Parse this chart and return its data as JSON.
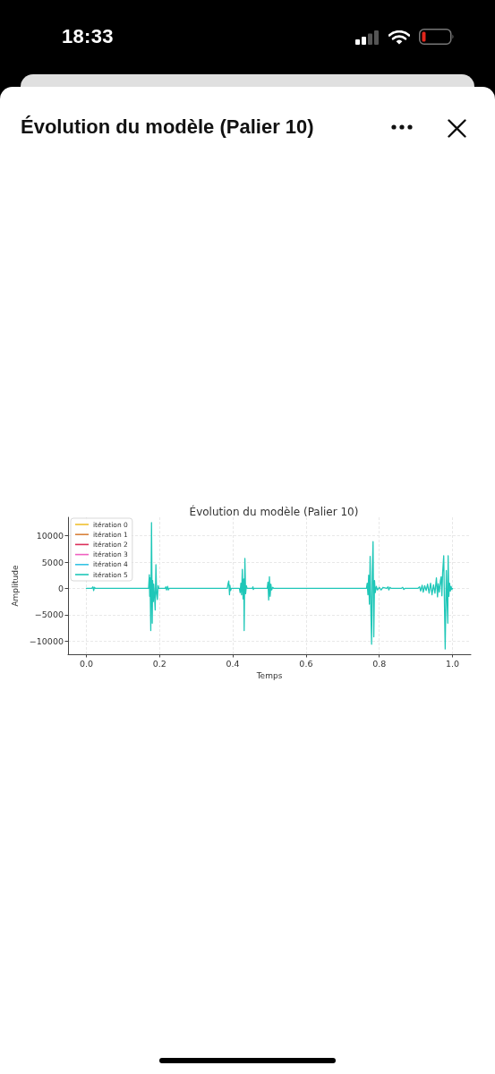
{
  "chart_data": {
    "type": "line",
    "title": "Évolution du modèle (Palier 10)",
    "xlabel": "Temps",
    "ylabel": "Amplitude",
    "annotations": [
      "18:33"
    ],
    "x": [
      0,
      0.015,
      0.018,
      0.02,
      0.022,
      0.025,
      0.17,
      0.172,
      0.173,
      0.174,
      0.176,
      0.178,
      0.18,
      0.181,
      0.183,
      0.184,
      0.186,
      0.188,
      0.19,
      0.192,
      0.194,
      0.196,
      0.198,
      0.215,
      0.217,
      0.219,
      0.222,
      0.224,
      0.226,
      0.385,
      0.387,
      0.389,
      0.391,
      0.392,
      0.394,
      0.396,
      0.418,
      0.42,
      0.422,
      0.424,
      0.426,
      0.428,
      0.43,
      0.431,
      0.433,
      0.435,
      0.437,
      0.439,
      0.453,
      0.455,
      0.456,
      0.458,
      0.494,
      0.496,
      0.498,
      0.5,
      0.502,
      0.504,
      0.506,
      0.509,
      0.512,
      0.765,
      0.767,
      0.769,
      0.771,
      0.773,
      0.775,
      0.777,
      0.779,
      0.781,
      0.783,
      0.785,
      0.787,
      0.789,
      0.792,
      0.795,
      0.8,
      0.805,
      0.81,
      0.82,
      0.824,
      0.826,
      0.829,
      0.833,
      0.86,
      0.864,
      0.867,
      0.87,
      0.905,
      0.91,
      0.913,
      0.917,
      0.92,
      0.924,
      0.928,
      0.932,
      0.936,
      0.94,
      0.944,
      0.948,
      0.952,
      0.956,
      0.959,
      0.961,
      0.964,
      0.967,
      0.969,
      0.971,
      0.973,
      0.976,
      0.978,
      0.98,
      0.983,
      0.985,
      0.987,
      0.988,
      0.99,
      0.992,
      0.994,
      0.996,
      0.998,
      1
    ],
    "series": [
      {
        "name": "itération 0",
        "color": "#f0c02e",
        "values": [
          null,
          null,
          null,
          null,
          null,
          null,
          null,
          null,
          null,
          null,
          null,
          null,
          null,
          null,
          null,
          null,
          null,
          null,
          null,
          null,
          null,
          null,
          null,
          null,
          null,
          null,
          null,
          null,
          null,
          null,
          null,
          null,
          null,
          null,
          null,
          null,
          null,
          null,
          null,
          null,
          null,
          null,
          null,
          null,
          null,
          null,
          null,
          null,
          null,
          null,
          null,
          null,
          null,
          null,
          null,
          null,
          null,
          null,
          null,
          null,
          null,
          null,
          null,
          null,
          null,
          null,
          null,
          null,
          null,
          null,
          null,
          null,
          null,
          null,
          null,
          null,
          null,
          null,
          null,
          null,
          null,
          null,
          null,
          null,
          null,
          null,
          null,
          null,
          null,
          null,
          null,
          null,
          null,
          null,
          null,
          null,
          null,
          null,
          null,
          null,
          null,
          null,
          null,
          null,
          null,
          null,
          null,
          null,
          null,
          null,
          null,
          null,
          null,
          null,
          null,
          null,
          null,
          null,
          null,
          null,
          null,
          null
        ]
      },
      {
        "name": "itération 1",
        "color": "#d9823b",
        "values": [
          null,
          null,
          null,
          null,
          null,
          null,
          null,
          null,
          null,
          null,
          null,
          null,
          null,
          null,
          null,
          null,
          null,
          null,
          null,
          null,
          null,
          null,
          null,
          null,
          null,
          null,
          null,
          null,
          null,
          null,
          null,
          null,
          null,
          null,
          null,
          null,
          null,
          null,
          null,
          null,
          null,
          null,
          null,
          null,
          null,
          null,
          null,
          null,
          null,
          null,
          null,
          null,
          null,
          null,
          null,
          null,
          null,
          null,
          null,
          null,
          null,
          null,
          null,
          null,
          null,
          null,
          null,
          null,
          null,
          null,
          null,
          null,
          null,
          null,
          null,
          null,
          null,
          null,
          null,
          null,
          null,
          null,
          null,
          null,
          null,
          null,
          null,
          null,
          null,
          null,
          null,
          null,
          null,
          null,
          null,
          null,
          null,
          null,
          null,
          null,
          null,
          null,
          null,
          null,
          null,
          null,
          null,
          null,
          null,
          null,
          null,
          null,
          null,
          null,
          null,
          null,
          null,
          null,
          null,
          null,
          null,
          null
        ]
      },
      {
        "name": "itération 2",
        "color": "#dc2f5a",
        "values": [
          null,
          null,
          null,
          null,
          null,
          null,
          null,
          null,
          null,
          null,
          null,
          null,
          null,
          null,
          null,
          null,
          null,
          null,
          null,
          null,
          null,
          null,
          null,
          null,
          null,
          null,
          null,
          null,
          null,
          null,
          null,
          null,
          null,
          null,
          null,
          null,
          null,
          null,
          null,
          null,
          null,
          null,
          null,
          null,
          null,
          null,
          null,
          null,
          null,
          null,
          null,
          null,
          null,
          null,
          null,
          null,
          null,
          null,
          null,
          null,
          null,
          null,
          null,
          null,
          null,
          null,
          null,
          null,
          null,
          null,
          null,
          null,
          null,
          null,
          null,
          null,
          null,
          null,
          null,
          null,
          null,
          null,
          null,
          null,
          null,
          null,
          null,
          null,
          null,
          null,
          null,
          null,
          null,
          null,
          null,
          null,
          null,
          null,
          null,
          null,
          null,
          null,
          null,
          null,
          null,
          null,
          null,
          null,
          null,
          null,
          null,
          null,
          null,
          null,
          null,
          null,
          null,
          null,
          null,
          null,
          null,
          null
        ]
      },
      {
        "name": "itération 3",
        "color": "#f060c0",
        "values": [
          null,
          null,
          null,
          null,
          null,
          null,
          null,
          null,
          null,
          null,
          null,
          null,
          null,
          null,
          null,
          null,
          null,
          null,
          null,
          null,
          null,
          null,
          null,
          null,
          null,
          null,
          null,
          null,
          null,
          null,
          null,
          null,
          null,
          null,
          null,
          null,
          null,
          null,
          null,
          null,
          null,
          null,
          null,
          null,
          null,
          null,
          null,
          null,
          null,
          null,
          null,
          null,
          null,
          null,
          null,
          null,
          null,
          null,
          null,
          null,
          null,
          null,
          null,
          null,
          null,
          null,
          null,
          null,
          null,
          null,
          null,
          null,
          null,
          null,
          null,
          null,
          null,
          null,
          null,
          null,
          null,
          null,
          null,
          null,
          null,
          null,
          null,
          null,
          null,
          null,
          null,
          null,
          null,
          null,
          null,
          null,
          null,
          null,
          null,
          null,
          null,
          null,
          null,
          null,
          null,
          null,
          null,
          null,
          null,
          null,
          null,
          null,
          null,
          null,
          null,
          null,
          null,
          null,
          null,
          null,
          null,
          null
        ]
      },
      {
        "name": "itération 4",
        "color": "#35c3e3",
        "values": [
          null,
          null,
          null,
          null,
          null,
          null,
          null,
          null,
          null,
          null,
          null,
          null,
          null,
          null,
          null,
          null,
          null,
          null,
          null,
          null,
          null,
          null,
          null,
          null,
          null,
          null,
          null,
          null,
          null,
          null,
          null,
          null,
          null,
          null,
          null,
          null,
          null,
          null,
          null,
          null,
          null,
          null,
          null,
          null,
          null,
          null,
          null,
          null,
          null,
          null,
          null,
          null,
          null,
          null,
          null,
          null,
          null,
          null,
          null,
          null,
          null,
          null,
          null,
          null,
          null,
          null,
          null,
          null,
          null,
          null,
          null,
          null,
          null,
          null,
          null,
          null,
          null,
          null,
          null,
          null,
          null,
          null,
          null,
          null,
          null,
          null,
          null,
          null,
          null,
          null,
          null,
          null,
          null,
          null,
          null,
          null,
          null,
          null,
          null,
          null,
          null,
          null,
          null,
          null,
          null,
          null,
          null,
          null,
          null,
          null,
          null,
          null,
          null,
          null,
          null,
          null,
          null,
          null,
          null,
          null,
          null,
          null
        ]
      },
      {
        "name": "itération 5",
        "color": "#1fc7b8",
        "values": [
          0,
          0,
          300,
          -400,
          200,
          0,
          0,
          2600,
          -1500,
          2000,
          -8000,
          12500,
          -6600,
          1500,
          -2500,
          800,
          -1200,
          -4100,
          4500,
          -1000,
          -2100,
          500,
          0,
          0,
          300,
          -300,
          400,
          -300,
          0,
          0,
          900,
          1400,
          -1200,
          600,
          -400,
          0,
          0,
          -800,
          1000,
          -1200,
          3600,
          -2000,
          1800,
          -8000,
          5700,
          -1000,
          500,
          0,
          0,
          300,
          -200,
          0,
          0,
          1200,
          -2200,
          2200,
          -1500,
          800,
          -300,
          200,
          0,
          0,
          1000,
          -1200,
          2500,
          -3000,
          6100,
          -4000,
          -10600,
          3000,
          8900,
          -9200,
          1500,
          -800,
          400,
          -300,
          200,
          -300,
          200,
          0,
          300,
          -300,
          200,
          0,
          0,
          200,
          -200,
          0,
          0,
          300,
          -500,
          600,
          -700,
          500,
          -400,
          800,
          -900,
          1000,
          -1200,
          700,
          -900,
          2000,
          -1600,
          900,
          -700,
          1500,
          2200,
          -1400,
          3000,
          6200,
          -3000,
          -11500,
          3400,
          -2000,
          -6600,
          6200,
          -1500,
          1000,
          -500,
          400,
          -200,
          0
        ]
      }
    ],
    "xlim": [
      -0.05,
      1.05
    ],
    "xticks": [
      {
        "value": 0,
        "label": "0.0"
      },
      0.2,
      0.4,
      0.6,
      0.8,
      {
        "value": 1,
        "label": "1.0"
      }
    ],
    "ylim": [
      -12500,
      13500
    ],
    "yticks": [
      -10000,
      -5000,
      0,
      5000,
      10000
    ],
    "grid": true,
    "legend": "top left"
  }
}
